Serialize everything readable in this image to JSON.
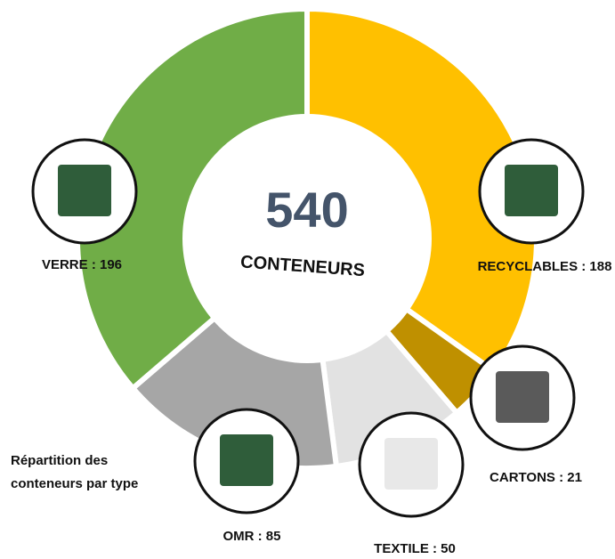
{
  "chart_data": {
    "type": "donut",
    "title": "Répartition des conteneurs par type",
    "total": "540",
    "total_caption": "CONTENEURS",
    "values": [
      188,
      21,
      50,
      85,
      196
    ],
    "value_labels": [
      "RECYCLABLES : 188",
      "CARTONS : 21",
      "TEXTILE : 50",
      "OMR : 85",
      "VERRE : 196"
    ],
    "colors": [
      "#FFC000",
      "#BF9000",
      "#E2E2E2",
      "#A6A6A6",
      "#70AD47"
    ]
  }
}
